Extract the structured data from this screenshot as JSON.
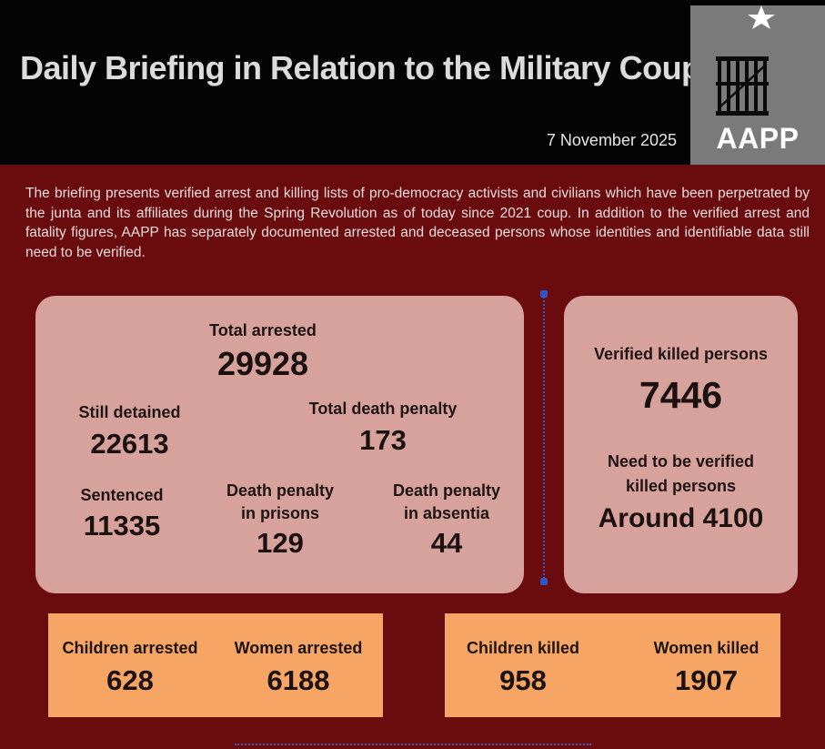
{
  "header": {
    "title": "Daily Briefing in Relation to the Military Coup",
    "date": "7 November 2025",
    "logo_text": "AAPP"
  },
  "intro": "The briefing presents verified arrest and killing lists of pro-democracy activists and civilians which have been perpetrated by the junta and its affiliates during the Spring Revolution as of today since 2021 coup. In addition to the verified arrest and fatality figures, AAPP has separately documented arrested and deceased persons whose identities and identifiable data still need to be verified.",
  "arrests": {
    "total_arrested_label": "Total arrested",
    "total_arrested_value": "29928",
    "still_detained_label": "Still detained",
    "still_detained_value": "22613",
    "total_death_penalty_label": "Total death penalty",
    "total_death_penalty_value": "173",
    "sentenced_label": "Sentenced",
    "sentenced_value": "11335",
    "dp_prisons_label_1": "Death penalty",
    "dp_prisons_label_2": "in prisons",
    "dp_prisons_value": "129",
    "dp_absentia_label_1": "Death penalty",
    "dp_absentia_label_2": "in absentia",
    "dp_absentia_value": "44"
  },
  "killed": {
    "verified_label": "Verified killed persons",
    "verified_value": "7446",
    "unverified_label_1": "Need to be verified",
    "unverified_label_2": "killed persons",
    "unverified_value": "Around 4100"
  },
  "children_women_arrested": {
    "children_label": "Children arrested",
    "children_value": "628",
    "women_label": "Women arrested",
    "women_value": "6188"
  },
  "children_women_killed": {
    "children_label": "Children killed",
    "children_value": "958",
    "women_label": "Women killed",
    "women_value": "1907"
  },
  "colors": {
    "background": "#6a0b0d",
    "header": "#050404",
    "panel": "#d8a29c",
    "box": "#f6a565",
    "logo": "#7a7a7a",
    "accent": "#2d57c8"
  }
}
